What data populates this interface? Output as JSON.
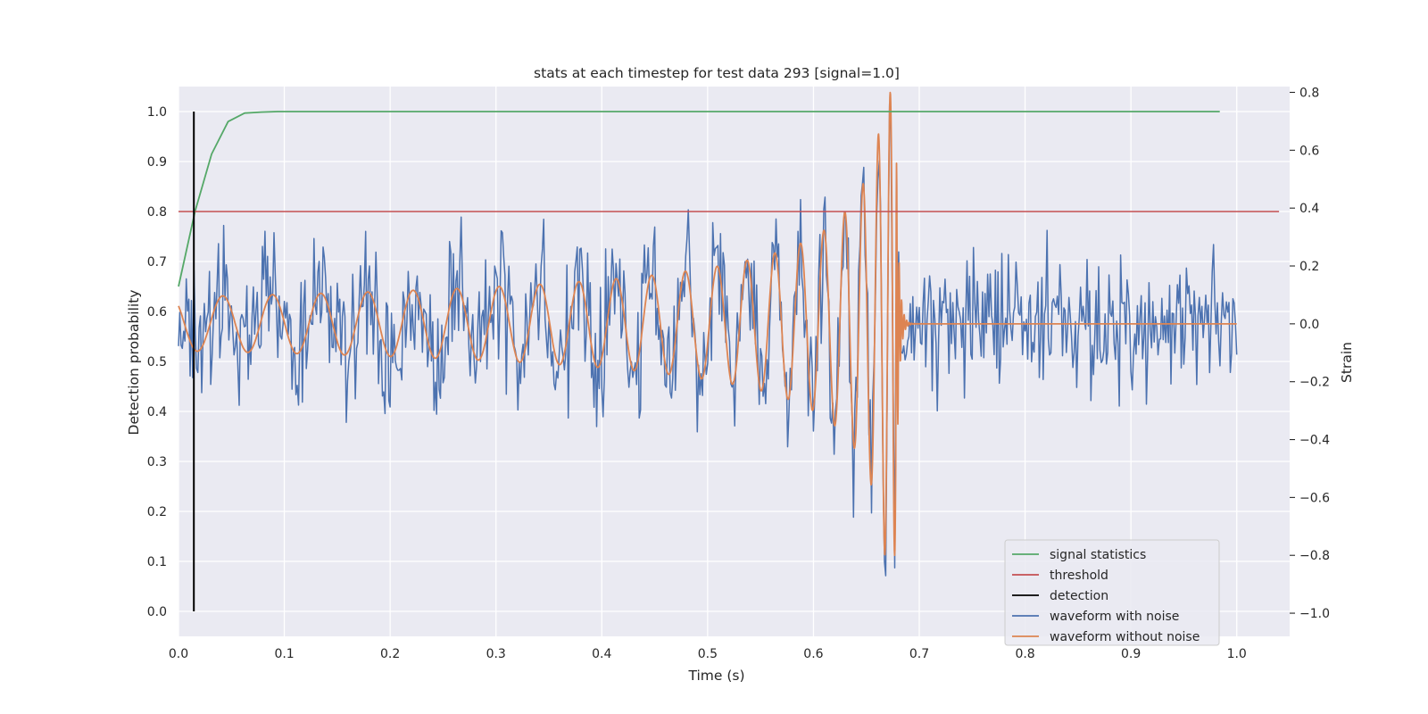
{
  "chart_data": {
    "type": "line",
    "title": "stats at each timestep for test data 293 [signal=1.0]",
    "xlabel": "Time (s)",
    "ylabel_left": "Detection probability",
    "ylabel_right": "Strain",
    "xlim": [
      0.0,
      1.05
    ],
    "ylim_left": [
      -0.05,
      1.05
    ],
    "ylim_right": [
      -1.08,
      0.82
    ],
    "xticks": [
      "0.0",
      "0.1",
      "0.2",
      "0.3",
      "0.4",
      "0.5",
      "0.6",
      "0.7",
      "0.8",
      "0.9",
      "1.0"
    ],
    "yticks_left": [
      "0.0",
      "0.1",
      "0.2",
      "0.3",
      "0.4",
      "0.5",
      "0.6",
      "0.7",
      "0.8",
      "0.9",
      "1.0"
    ],
    "yticks_right": [
      "−1.0",
      "−0.8",
      "−0.6",
      "−0.4",
      "−0.2",
      "0.0",
      "0.2",
      "0.4",
      "0.6",
      "0.8"
    ],
    "legend_position": "lower-right",
    "legend": [
      {
        "label": "signal statistics",
        "color": "#55a868"
      },
      {
        "label": "threshold",
        "color": "#c44e52"
      },
      {
        "label": "detection",
        "color": "#000000"
      },
      {
        "label": "waveform with noise",
        "color": "#4c72b0"
      },
      {
        "label": "waveform without noise",
        "color": "#dd8452"
      }
    ],
    "series": [
      {
        "name": "signal statistics",
        "axis": "left",
        "color": "#55a868",
        "x": [
          0.0,
          0.0156,
          0.0313,
          0.0469,
          0.0625,
          0.0781,
          0.0938,
          0.125,
          0.25,
          0.5,
          0.75,
          0.984
        ],
        "y": [
          0.65,
          0.8,
          0.915,
          0.98,
          0.997,
          0.999,
          1.0,
          1.0,
          1.0,
          1.0,
          1.0,
          1.0
        ]
      },
      {
        "name": "threshold",
        "axis": "left",
        "color": "#c44e52",
        "x": [
          0.0,
          1.04
        ],
        "y": [
          0.8,
          0.8
        ]
      },
      {
        "name": "detection",
        "axis": "left",
        "color": "#000000",
        "x": [
          0.0145,
          0.0145
        ],
        "y": [
          0.0,
          1.0
        ]
      },
      {
        "name": "waveform with noise",
        "axis": "right",
        "color": "#4c72b0",
        "generator": "pseudo-random noise (std ~0.2) added to the noise-free waveform, strain range -1.0 to 0.8",
        "x_range": [
          0.0,
          1.0
        ]
      },
      {
        "name": "waveform without noise",
        "axis": "right",
        "color": "#dd8452",
        "generator": "chirp: amplitude rising from ~0.09 to ~0.8, merger at t=0.678 s, zero after ringdown",
        "x_range": [
          0.0,
          1.0
        ]
      }
    ]
  }
}
